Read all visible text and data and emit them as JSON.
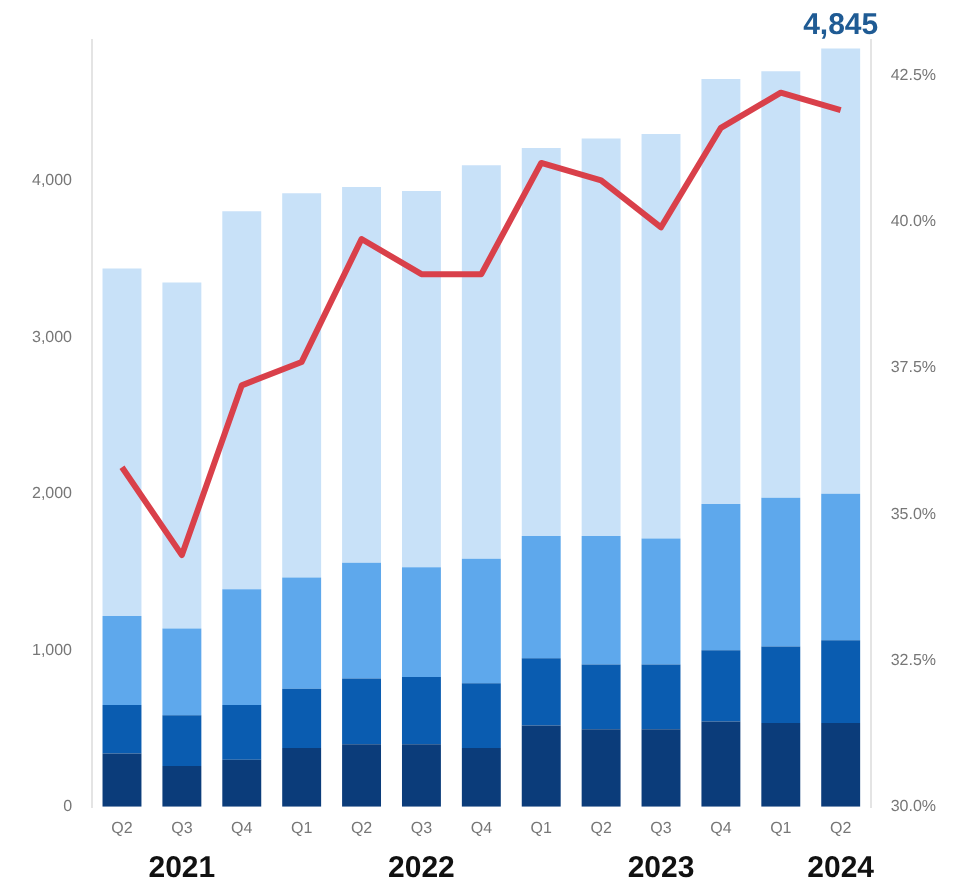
{
  "chart_data": {
    "type": "bar",
    "stacked": true,
    "categories": [
      "Q2",
      "Q3\n2021",
      "Q4",
      "Q1",
      "Q2",
      "Q3\n2022",
      "Q4",
      "Q1",
      "Q2",
      "Q3\n2023",
      "Q4",
      "Q1",
      "Q2\n2024"
    ],
    "series": [
      {
        "color": "#0b3c7a",
        "values": [
          340,
          260,
          300,
          375,
          400,
          400,
          375,
          520,
          495,
          495,
          545,
          535,
          535
        ]
      },
      {
        "color": "#0a5cb0",
        "values": [
          310,
          325,
          350,
          380,
          420,
          430,
          415,
          430,
          415,
          415,
          455,
          490,
          530
        ]
      },
      {
        "color": "#5ea8ec",
        "values": [
          570,
          555,
          740,
          710,
          740,
          700,
          795,
          780,
          820,
          805,
          935,
          950,
          935
        ]
      },
      {
        "color": "#c8e1f8",
        "values": [
          2220,
          2210,
          2415,
          2455,
          2400,
          2405,
          2515,
          2480,
          2540,
          2585,
          2715,
          2725,
          2845
        ]
      },
      {
        "type": "line",
        "axis": "y2",
        "color": "#d9404a",
        "marker": "none",
        "values": [
          35.8,
          34.3,
          37.2,
          37.6,
          39.7,
          39.1,
          39.1,
          41.0,
          40.7,
          39.9,
          41.6,
          42.2,
          41.9
        ]
      }
    ],
    "ylim": [
      0,
      4900
    ],
    "yticks": [
      0,
      {
        "value": 1000,
        "label": "1,000"
      },
      {
        "value": 2000,
        "label": "2,000"
      },
      {
        "value": 3000,
        "label": "3,000"
      },
      {
        "value": 4000,
        "label": "4,000"
      }
    ],
    "y2lim": [
      30,
      43.1
    ],
    "y2ticks": [
      {
        "value": 30,
        "label": "30.0%"
      },
      {
        "value": 32.5,
        "label": "32.5%"
      },
      {
        "value": 35,
        "label": "35.0%"
      },
      {
        "value": 37.5,
        "label": "37.5%"
      },
      {
        "value": 40,
        "label": "40.0%"
      },
      {
        "value": 42.5,
        "label": "42.5%"
      }
    ],
    "annotations": [
      {
        "text": "4,845",
        "x": "Q2\n2024",
        "y": 4845
      }
    ],
    "grid": false,
    "legend": false
  }
}
